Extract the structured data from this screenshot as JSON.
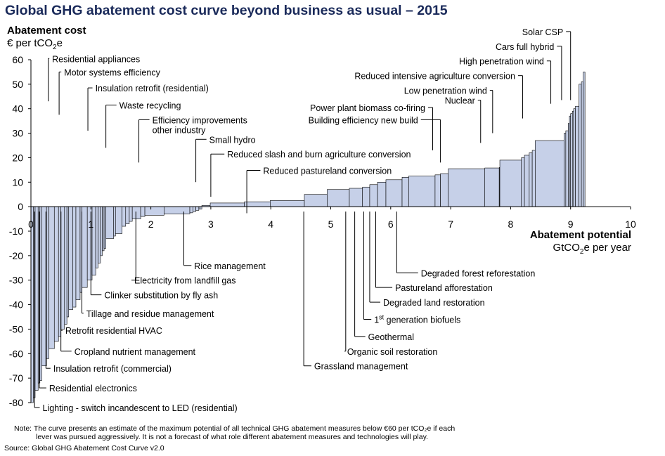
{
  "chart_data": {
    "type": "bar",
    "title": "Global GHG abatement cost curve beyond business as usual – 2015",
    "ylabel": "Abatement cost",
    "ylabel_unit_prefix": "€ per tCO",
    "ylabel_unit_sub": "2",
    "ylabel_unit_suffix": "e",
    "xlabel": "Abatement potential",
    "xlabel_unit_prefix": "GtCO",
    "xlabel_unit_sub": "2",
    "xlabel_unit_suffix": "e per year",
    "xlim": [
      0,
      10
    ],
    "ylim": [
      -80,
      60
    ],
    "x_ticks": [
      "0",
      "1",
      "2",
      "3",
      "4",
      "5",
      "6",
      "7",
      "8",
      "9",
      "10"
    ],
    "y_ticks": [
      "60",
      "50",
      "40",
      "30",
      "20",
      "10",
      "0",
      "-10",
      "-20",
      "-30",
      "-40",
      "-50",
      "-60",
      "-70",
      "-80"
    ],
    "colors": {
      "bar_fill": "#c6d0e8",
      "bar_stroke": "#000000",
      "title": "#1a2a5a"
    },
    "bars": [
      {
        "w": 0.04,
        "h": -80
      },
      {
        "w": 0.03,
        "h": -78
      },
      {
        "w": 0.05,
        "h": -75
      },
      {
        "w": 0.03,
        "h": -72
      },
      {
        "w": 0.03,
        "h": -71
      },
      {
        "w": 0.08,
        "h": -65
      },
      {
        "w": 0.04,
        "h": -62
      },
      {
        "w": 0.09,
        "h": -58
      },
      {
        "w": 0.07,
        "h": -55
      },
      {
        "w": 0.04,
        "h": -53
      },
      {
        "w": 0.06,
        "h": -50
      },
      {
        "w": 0.04,
        "h": -48
      },
      {
        "w": 0.03,
        "h": -45
      },
      {
        "w": 0.07,
        "h": -42
      },
      {
        "w": 0.05,
        "h": -41
      },
      {
        "w": 0.07,
        "h": -38
      },
      {
        "w": 0.03,
        "h": -35
      },
      {
        "w": 0.09,
        "h": -33
      },
      {
        "w": 0.08,
        "h": -30
      },
      {
        "w": 0.06,
        "h": -28
      },
      {
        "w": 0.04,
        "h": -25
      },
      {
        "w": 0.04,
        "h": -23
      },
      {
        "w": 0.03,
        "h": -20
      },
      {
        "w": 0.03,
        "h": -18
      },
      {
        "w": 0.03,
        "h": -17
      },
      {
        "w": 0.13,
        "h": -13
      },
      {
        "w": 0.03,
        "h": -12
      },
      {
        "w": 0.11,
        "h": -11
      },
      {
        "w": 0.06,
        "h": -8
      },
      {
        "w": 0.06,
        "h": -7
      },
      {
        "w": 0.05,
        "h": -6
      },
      {
        "w": 0.14,
        "h": -5
      },
      {
        "w": 0.07,
        "h": -4
      },
      {
        "w": 0.32,
        "h": -3.5
      },
      {
        "w": 0.43,
        "h": -3
      },
      {
        "w": 0.05,
        "h": -2.5
      },
      {
        "w": 0.05,
        "h": -2
      },
      {
        "w": 0.05,
        "h": -1.5
      },
      {
        "w": 0.02,
        "h": -1
      },
      {
        "w": 0.03,
        "h": -1
      },
      {
        "w": 0.14,
        "h": 0.5
      },
      {
        "w": 0.57,
        "h": 1.5
      },
      {
        "w": 0.43,
        "h": 2
      },
      {
        "w": 0.57,
        "h": 2.5
      },
      {
        "w": 0.38,
        "h": 5
      },
      {
        "w": 0.37,
        "h": 7
      },
      {
        "w": 0.22,
        "h": 7.5
      },
      {
        "w": 0.12,
        "h": 8
      },
      {
        "w": 0.13,
        "h": 9
      },
      {
        "w": 0.14,
        "h": 10
      },
      {
        "w": 0.27,
        "h": 11
      },
      {
        "w": 0.11,
        "h": 12
      },
      {
        "w": 0.44,
        "h": 12.5
      },
      {
        "w": 0.09,
        "h": 13
      },
      {
        "w": 0.13,
        "h": 13.5
      },
      {
        "w": 0.61,
        "h": 15.5
      },
      {
        "w": 0.24,
        "h": 15.8
      },
      {
        "w": 0.01,
        "h": 16
      },
      {
        "w": 0.36,
        "h": 19
      },
      {
        "w": 0.05,
        "h": 20
      },
      {
        "w": 0.08,
        "h": 21
      },
      {
        "w": 0.05,
        "h": 22
      },
      {
        "w": 0.05,
        "h": 23
      },
      {
        "w": 0.48,
        "h": 27
      },
      {
        "w": 0.03,
        "h": 30
      },
      {
        "w": 0.04,
        "h": 31
      },
      {
        "w": 0.02,
        "h": 34
      },
      {
        "w": 0.02,
        "h": 37
      },
      {
        "w": 0.03,
        "h": 38
      },
      {
        "w": 0.02,
        "h": 39
      },
      {
        "w": 0.03,
        "h": 40
      },
      {
        "w": 0.06,
        "h": 41
      },
      {
        "w": 0.04,
        "h": 50
      },
      {
        "w": 0.03,
        "h": 51
      },
      {
        "w": 0.03,
        "h": 55
      }
    ],
    "annotations": [
      {
        "label": "Residential appliances",
        "x": 0.29,
        "y": 60.5,
        "tx": 0.33,
        "anchor": "start"
      },
      {
        "label": "Motor systems efficiency",
        "x": 0.47,
        "y": 55,
        "tx": 0.53,
        "anchor": "start"
      },
      {
        "label": "Insulation retrofit (residential)",
        "x": 0.95,
        "y": 48.5,
        "tx": 1.05,
        "anchor": "start"
      },
      {
        "label": "Waste recycling",
        "x": 1.25,
        "y": 41.5,
        "tx": 1.45,
        "anchor": "start"
      },
      {
        "label": "Efficiency improvements",
        "label2": "other industry",
        "x": 1.8,
        "y": 35.5,
        "tx": 2.0,
        "anchor": "start"
      },
      {
        "label": "Small hydro",
        "x": 2.75,
        "y": 27.5,
        "tx": 2.95,
        "anchor": "start"
      },
      {
        "label": "Reduced slash and burn agriculture conversion",
        "x": 3.0,
        "y": 21.5,
        "tx": 3.25,
        "anchor": "start"
      },
      {
        "label": "Reduced pastureland conversion",
        "x": 3.6,
        "y": 14.8,
        "tx": 3.85,
        "anchor": "start"
      },
      {
        "label": "Power plant biomass co-firing",
        "x": 6.7,
        "y": 40.5,
        "tx": 6.6,
        "anchor": "end"
      },
      {
        "label": "Building efficiency new build",
        "x": 6.83,
        "y": 35.5,
        "tx": 6.48,
        "anchor": "end"
      },
      {
        "label": "Nuclear",
        "x": 7.5,
        "y": 43.5,
        "tx": 7.43,
        "anchor": "end"
      },
      {
        "label": "Low penetration wind",
        "x": 7.7,
        "y": 47.5,
        "tx": 7.63,
        "anchor": "end"
      },
      {
        "label": "Reduced intensive agriculture conversion",
        "x": 8.2,
        "y": 53.5,
        "tx": 8.1,
        "anchor": "end"
      },
      {
        "label": "High penetration wind",
        "x": 8.67,
        "y": 59.5,
        "tx": 8.58,
        "anchor": "end"
      },
      {
        "label": "Cars full hybrid",
        "x": 8.85,
        "y": 65.5,
        "tx": 8.75,
        "anchor": "end"
      },
      {
        "label": "Solar CSP",
        "x": 9.0,
        "y": 71.5,
        "tx": 8.9,
        "anchor": "end"
      }
    ],
    "below_labels": [
      {
        "label": "Rice management",
        "x": 2.55,
        "y": -24,
        "tx": 2.7,
        "anchor": "start"
      },
      {
        "label": "Electricity from landfill gas",
        "x": 1.75,
        "y": -30,
        "tx": 1.7,
        "anchor": "start"
      },
      {
        "label": "Clinker substitution by fly ash",
        "x": 1.0,
        "y": -36,
        "tx": 1.2,
        "anchor": "start"
      },
      {
        "label": "Tillage and residue management",
        "x": 0.85,
        "y": -43.5,
        "tx": 0.9,
        "anchor": "start"
      },
      {
        "label": "Retrofit residential HVAC",
        "x": 0.5,
        "y": -50.5,
        "tx": 0.55,
        "anchor": "start"
      },
      {
        "label": "Cropland nutrient management",
        "x": 0.5,
        "y": -59,
        "tx": 0.7,
        "anchor": "start"
      },
      {
        "label": "Insulation retrofit (commercial)",
        "x": 0.25,
        "y": -66,
        "tx": 0.35,
        "anchor": "start"
      },
      {
        "label": "Residential electronics",
        "x": 0.14,
        "y": -74,
        "tx": 0.28,
        "anchor": "start"
      },
      {
        "label": "Lighting - switch incandescent to LED (residential)",
        "x": 0.06,
        "y": -82,
        "tx": 0.17,
        "anchor": "start"
      },
      {
        "label": "Grassland management",
        "x": 4.55,
        "y": -65,
        "tx": 4.7,
        "anchor": "start"
      },
      {
        "label": "Organic soil restoration",
        "x": 5.25,
        "y": -59,
        "tx": 5.25,
        "anchor": "start"
      },
      {
        "label": "Geothermal",
        "x": 5.4,
        "y": -53,
        "tx": 5.6,
        "anchor": "start"
      },
      {
        "label": "1st generation biofuels",
        "label_sup": "st",
        "x": 5.55,
        "y": -46,
        "tx": 5.7,
        "anchor": "start"
      },
      {
        "label": "Degraded land restoration",
        "x": 5.65,
        "y": -39,
        "tx": 5.85,
        "anchor": "start"
      },
      {
        "label": "Pastureland afforestation",
        "x": 5.75,
        "y": -33,
        "tx": 6.05,
        "anchor": "start"
      },
      {
        "label": "Degraded forest reforestation",
        "x": 6.1,
        "y": -27,
        "tx": 6.48,
        "anchor": "start"
      }
    ]
  },
  "footer": {
    "note_line1": "Note: The curve presents an estimate of the maximum potential of all technical GHG abatement measures below €60 per tCO₂e if each",
    "note_line2": "lever was pursued aggressively. It is not a forecast of what role different abatement measures and technologies will play.",
    "source": "Source: Global GHG Abatement Cost Curve v2.0"
  }
}
